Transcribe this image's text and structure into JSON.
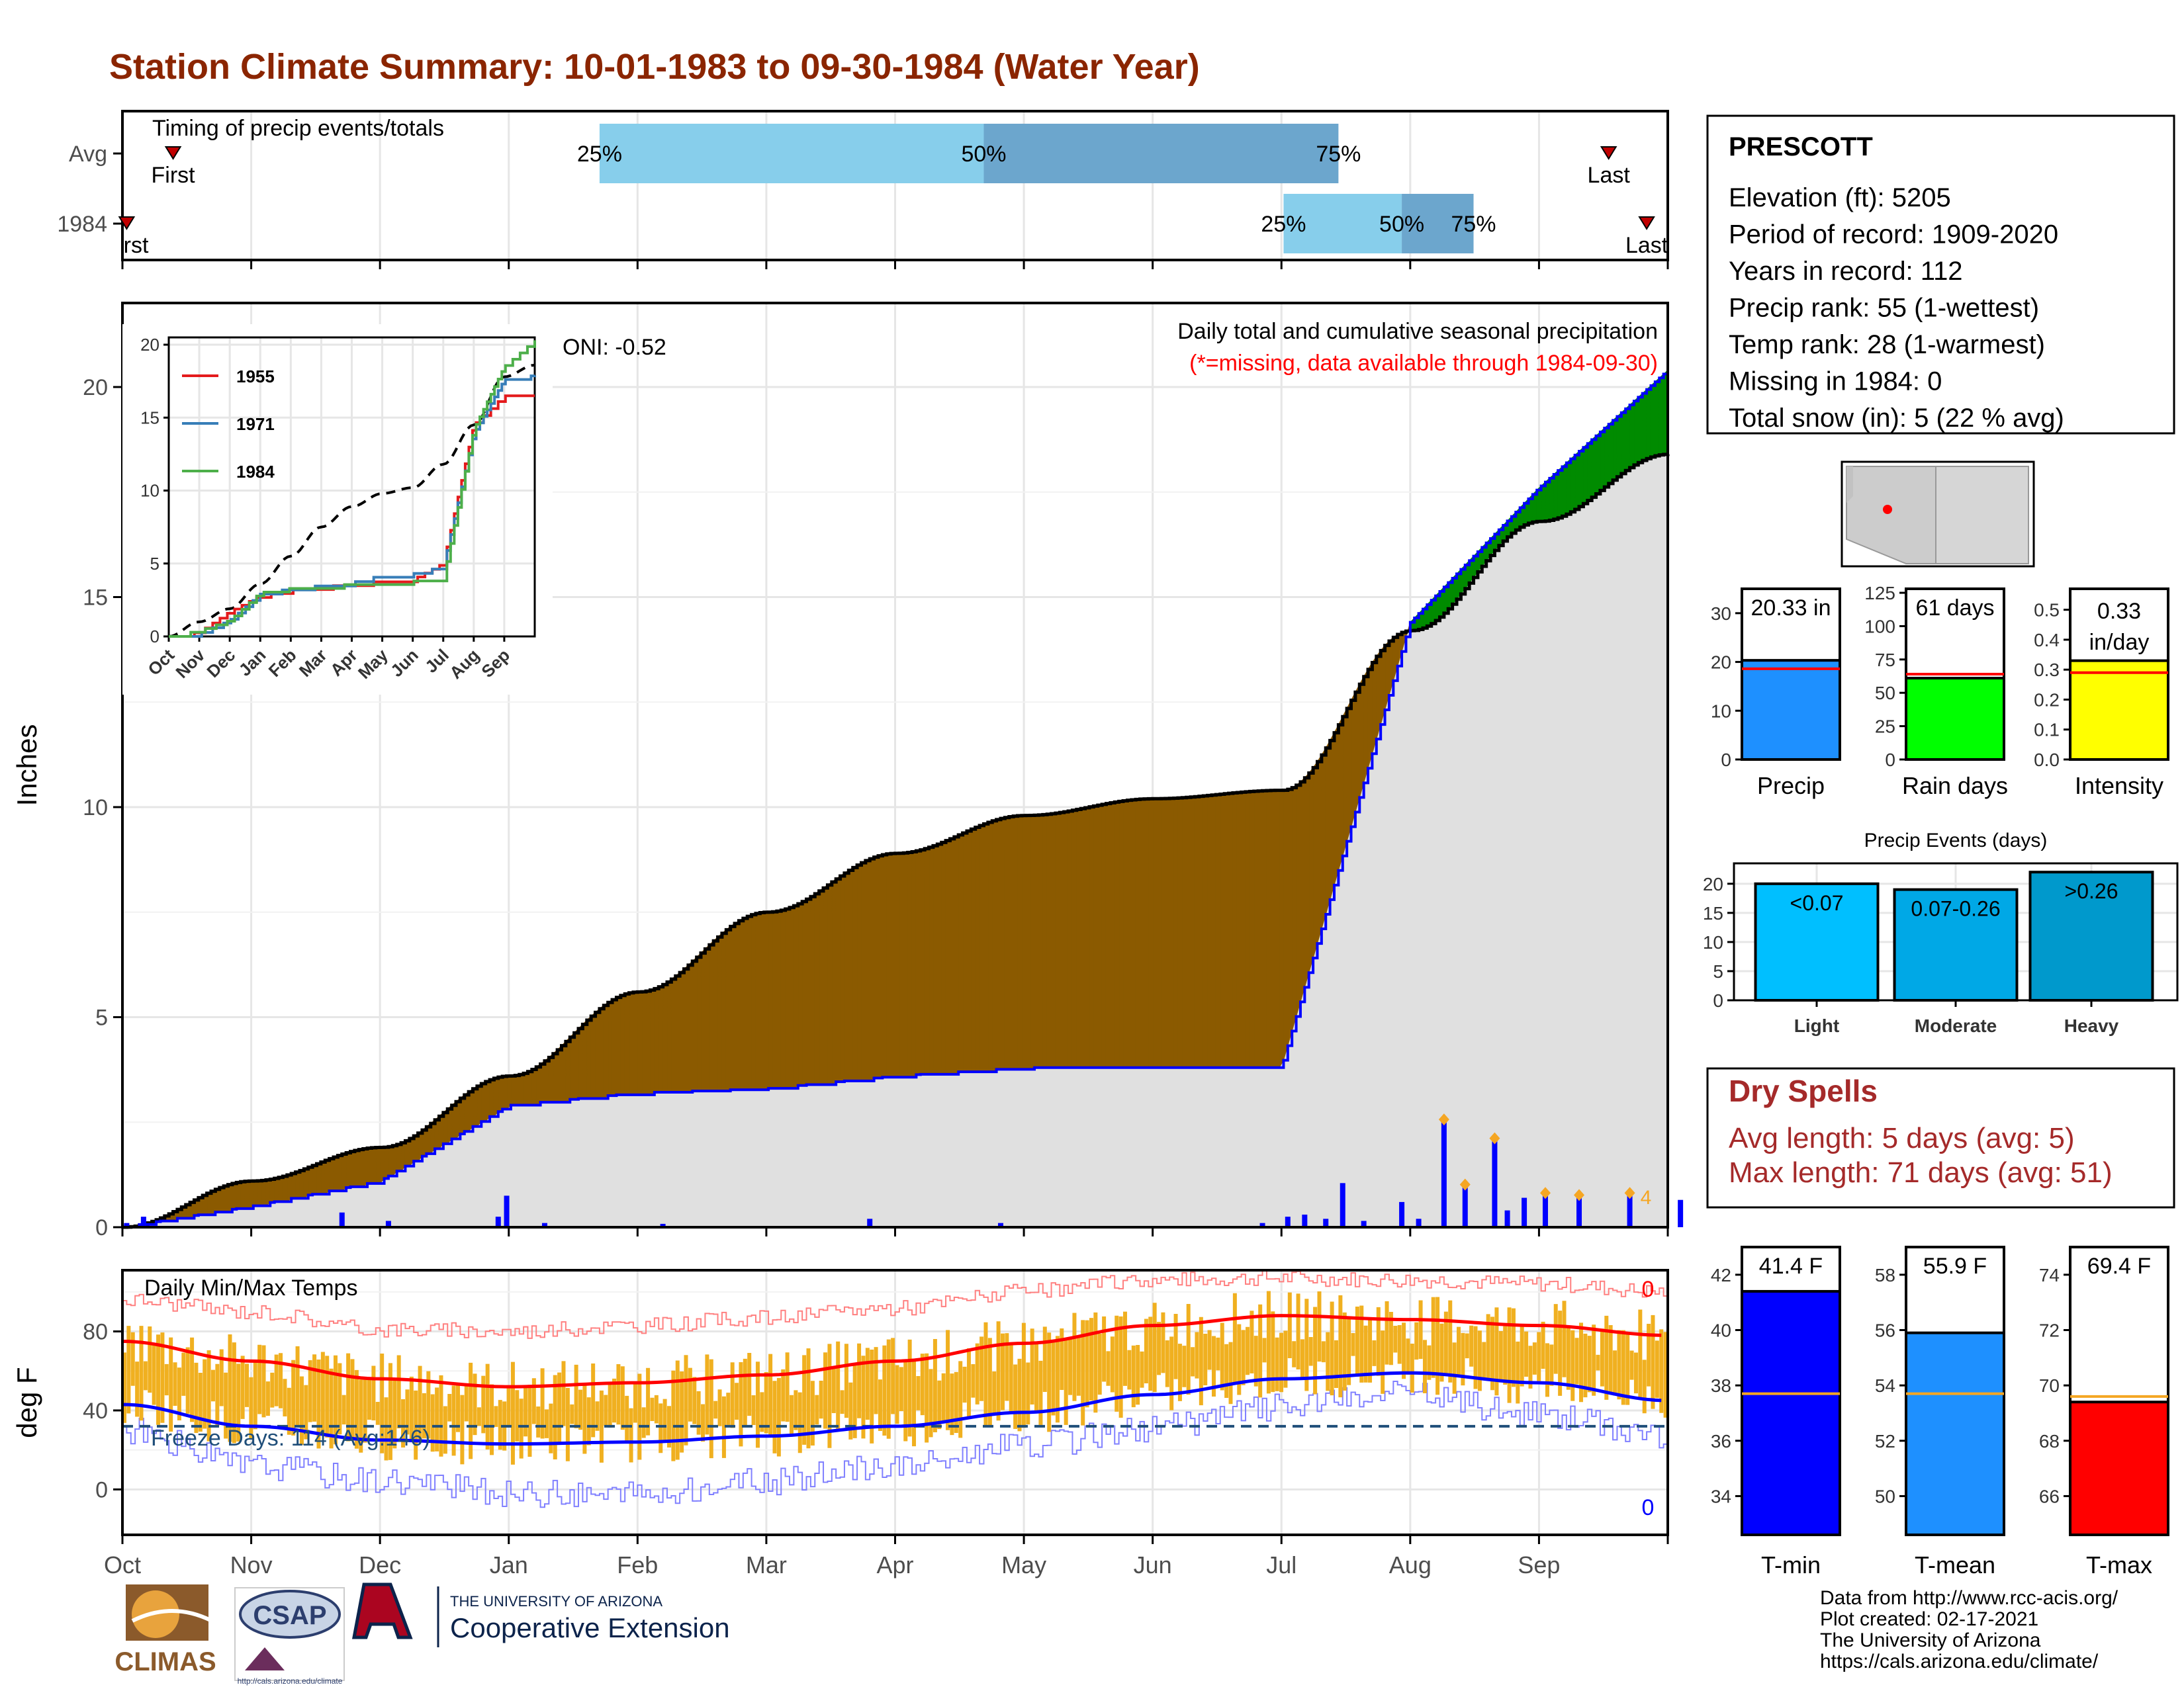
{
  "title": "Station Climate Summary: 10-01-1983 to 09-30-1984 (Water Year)",
  "months": [
    "Oct",
    "Nov",
    "Dec",
    "Jan",
    "Feb",
    "Mar",
    "Apr",
    "May",
    "Jun",
    "Jul",
    "Aug",
    "Sep"
  ],
  "colors": {
    "title": "#8b2500",
    "deficit": "#8b5a00",
    "surplus": "#008b00",
    "cumulative_line": "#0000ff",
    "normal_fill": "#e0e0e0",
    "q_light": "#87ceeb",
    "q_dark": "#6ca6cd",
    "temp_bar": "#f0b020",
    "tmax_avg": "#ff0000",
    "tmin_avg": "#0000ff",
    "extreme_max": "#ff8080",
    "extreme_min": "#8080ff",
    "dry_spells": "#a52a2a"
  },
  "timing": {
    "title": "Timing of precip events/totals",
    "rows": [
      {
        "label": "Avg",
        "first_label": "First",
        "last_label": "Last",
        "first_day": 12,
        "last_day": 352,
        "q25_day": 113,
        "q50_day": 204,
        "q75_day": 288,
        "p25": "25%",
        "p50": "50%",
        "p75": "75%"
      },
      {
        "label": "1984",
        "first_label": "First",
        "last_label": "Last",
        "first_day": 1,
        "last_day": 361,
        "q25_day": 275,
        "q50_day": 303,
        "q75_day": 320,
        "p25": "25%",
        "p50": "50%",
        "p75": "75%"
      }
    ]
  },
  "precip_panel": {
    "ylabel": "Inches",
    "title": "Daily total and cumulative seasonal precipitation",
    "subtitle": "(*=missing, data available through 1984-09-30)",
    "oni": "ONI: -0.52",
    "y_ticks": [
      "0",
      "5",
      "10",
      "15",
      "20"
    ],
    "bar_labels": [
      "4"
    ]
  },
  "inset": {
    "legend": [
      {
        "name": "1955",
        "color": "#e41a1c"
      },
      {
        "name": "1971",
        "color": "#377eb8"
      },
      {
        "name": "1984",
        "color": "#4daf4a"
      }
    ],
    "y_ticks": [
      "0",
      "5",
      "10",
      "15",
      "20"
    ],
    "x_ticks": [
      "Oct",
      "Nov",
      "Dec",
      "Jan",
      "Feb",
      "Mar",
      "Apr",
      "May",
      "Jun",
      "Jul",
      "Aug",
      "Sep"
    ]
  },
  "temp_panel": {
    "ylabel": "deg F",
    "title": "Daily Min/Max Temps",
    "freeze": "Freeze Days: 114 (Avg:146)",
    "record_high_count": "0",
    "record_low_count": "0",
    "y_ticks": [
      "0",
      "40",
      "80"
    ]
  },
  "station": {
    "name": "PRESCOTT",
    "lines": [
      "Elevation (ft): 5205",
      "Period of record: 1909-2020",
      "Years in record: 112",
      "Precip rank: 55 (1-wettest)",
      "Temp rank: 28 (1-warmest)",
      "Missing in 1984: 0",
      "Total snow (in): 5 (22 % avg)"
    ]
  },
  "precip_stats": [
    {
      "label": "Precip",
      "value_text": "20.33 in",
      "value": 20.33,
      "avg": 18.6,
      "ymax": 35,
      "ticks": [
        "0",
        "10",
        "20",
        "30"
      ],
      "tick_vals": [
        0,
        10,
        20,
        30
      ],
      "color": "#1e90ff"
    },
    {
      "label": "Rain days",
      "value_text": "61 days",
      "value": 61,
      "avg": 64,
      "ymax": 128,
      "ticks": [
        "0",
        "25",
        "50",
        "75",
        "100",
        "125"
      ],
      "tick_vals": [
        0,
        25,
        50,
        75,
        100,
        125
      ],
      "color": "#00ff00"
    },
    {
      "label": "Intensity",
      "value_text": "0.33 in/day",
      "value": 0.33,
      "avg": 0.29,
      "ymax": 0.57,
      "ticks": [
        "0.0",
        "0.1",
        "0.2",
        "0.3",
        "0.4",
        "0.5"
      ],
      "tick_vals": [
        0,
        0.1,
        0.2,
        0.3,
        0.4,
        0.5
      ],
      "color": "#ffff00"
    }
  ],
  "precip_events": {
    "title": "Precip Events (days)",
    "y_ticks": [
      "0",
      "5",
      "10",
      "15",
      "20"
    ],
    "bars": [
      {
        "category": "Light",
        "range": "<0.07",
        "value": 20,
        "color": "#00bfff"
      },
      {
        "category": "Moderate",
        "range": "0.07-0.26",
        "value": 19,
        "color": "#00a8e6"
      },
      {
        "category": "Heavy",
        "range": ">0.26",
        "value": 22,
        "color": "#0099cc"
      }
    ]
  },
  "dry_spells": {
    "title": "Dry Spells",
    "avg": "Avg length: 5 days (avg: 5)",
    "max": "Max length: 71 days (avg: 51)"
  },
  "temp_stats": [
    {
      "label": "T-min",
      "value_text": "41.4 F",
      "value": 41.4,
      "avg": 37.7,
      "ymin": 32.6,
      "ymax": 43.0,
      "ticks": [
        "34",
        "36",
        "38",
        "40",
        "42"
      ],
      "tick_vals": [
        34,
        36,
        38,
        40,
        42
      ],
      "color": "#0000ff"
    },
    {
      "label": "T-mean",
      "value_text": "55.9 F",
      "value": 55.9,
      "avg": 53.7,
      "ymin": 48.6,
      "ymax": 59.0,
      "ticks": [
        "50",
        "52",
        "54",
        "56",
        "58"
      ],
      "tick_vals": [
        50,
        52,
        54,
        56,
        58
      ],
      "color": "#1e90ff"
    },
    {
      "label": "T-max",
      "value_text": "69.4 F",
      "value": 69.4,
      "avg": 69.6,
      "ymin": 64.6,
      "ymax": 75.0,
      "ticks": [
        "66",
        "68",
        "70",
        "72",
        "74"
      ],
      "tick_vals": [
        66,
        68,
        70,
        72,
        74
      ],
      "color": "#ff0000"
    }
  ],
  "footer": {
    "credits": [
      "Data from http://www.rcc-acis.org/",
      "Plot created: 02-17-2021",
      "The University of Arizona",
      "https://cals.arizona.edu/climate/"
    ],
    "logo1": "CLIMAS",
    "logo2": "CSAP",
    "logo2_url": "http://cals.arizona.edu/climate",
    "ua_line1": "THE UNIVERSITY OF ARIZONA",
    "ua_line2": "Cooperative Extension"
  },
  "chart_data": [
    {
      "type": "area",
      "title": "Daily total and cumulative seasonal precipitation",
      "ylabel": "Inches",
      "ylim": [
        0,
        22
      ],
      "x": [
        "Oct",
        "Nov",
        "Dec",
        "Jan",
        "Feb",
        "Mar",
        "Apr",
        "May",
        "Jun",
        "Jul",
        "Aug",
        "Sep",
        "Oct"
      ],
      "series": [
        {
          "name": "normal",
          "values": [
            0,
            1.1,
            1.9,
            3.6,
            5.6,
            7.5,
            8.9,
            9.8,
            10.2,
            10.4,
            14.2,
            16.8,
            18.4
          ]
        },
        {
          "name": "1984",
          "values": [
            0,
            0.5,
            1.1,
            2.9,
            3.2,
            3.3,
            3.6,
            3.8,
            3.8,
            3.8,
            14.4,
            17.6,
            20.4
          ]
        }
      ],
      "daily_precip": [
        {
          "day": 1,
          "value": 0.1
        },
        {
          "day": 5,
          "value": 0.25
        },
        {
          "day": 52,
          "value": 0.35
        },
        {
          "day": 63,
          "value": 0.15
        },
        {
          "day": 89,
          "value": 0.25
        },
        {
          "day": 91,
          "value": 0.75
        },
        {
          "day": 100,
          "value": 0.1
        },
        {
          "day": 128,
          "value": 0.08
        },
        {
          "day": 177,
          "value": 0.2
        },
        {
          "day": 208,
          "value": 0.1
        },
        {
          "day": 270,
          "value": 0.1
        },
        {
          "day": 276,
          "value": 0.25
        },
        {
          "day": 280,
          "value": 0.3
        },
        {
          "day": 285,
          "value": 0.2
        },
        {
          "day": 289,
          "value": 1.05
        },
        {
          "day": 294,
          "value": 0.15
        },
        {
          "day": 303,
          "value": 0.6
        },
        {
          "day": 307,
          "value": 0.2
        },
        {
          "day": 313,
          "value": 2.55
        },
        {
          "day": 318,
          "value": 1.0
        },
        {
          "day": 325,
          "value": 2.1
        },
        {
          "day": 328,
          "value": 0.4
        },
        {
          "day": 332,
          "value": 0.7
        },
        {
          "day": 337,
          "value": 0.8
        },
        {
          "day": 345,
          "value": 0.75
        },
        {
          "day": 357,
          "value": 0.8
        },
        {
          "day": 369,
          "value": 0.65
        }
      ]
    },
    {
      "type": "line",
      "title": "Daily Min/Max Temps",
      "ylabel": "deg F",
      "ylim": [
        -23,
        111
      ],
      "x": [
        "Oct",
        "Nov",
        "Dec",
        "Jan",
        "Feb",
        "Mar",
        "Apr",
        "May",
        "Jun",
        "Jul",
        "Aug",
        "Sep",
        "Oct"
      ],
      "series": [
        {
          "name": "avg_tmax",
          "values": [
            75,
            65,
            56,
            52,
            54,
            58,
            65,
            74,
            83,
            88,
            86,
            83,
            78
          ]
        },
        {
          "name": "avg_tmin",
          "values": [
            43,
            32,
            25,
            23,
            24,
            27,
            32,
            39,
            48,
            56,
            59,
            54,
            45
          ]
        },
        {
          "name": "record_max",
          "values": [
            96,
            90,
            81,
            80,
            83,
            87,
            92,
            100,
            106,
            107,
            106,
            104,
            100
          ]
        },
        {
          "name": "record_min",
          "values": [
            30,
            12,
            5,
            -2,
            -3,
            4,
            12,
            22,
            31,
            42,
            48,
            38,
            28
          ]
        }
      ]
    }
  ]
}
